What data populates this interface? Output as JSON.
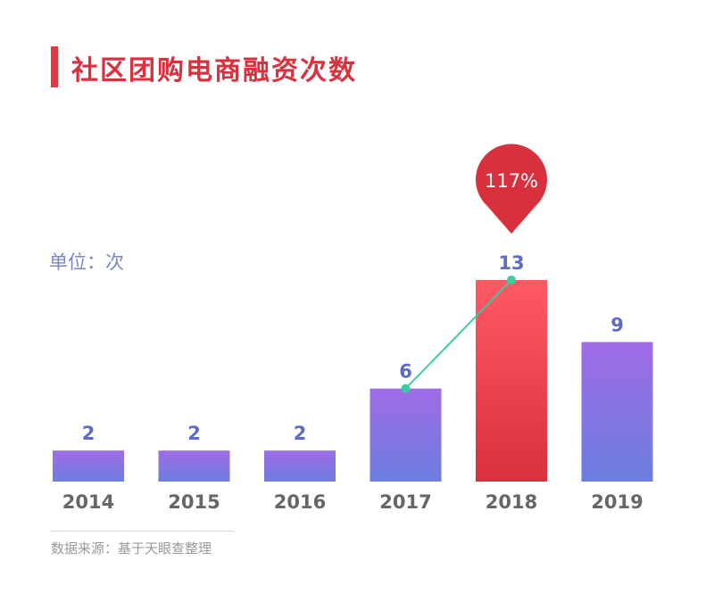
{
  "title": "社区团购电商融资次数",
  "unit_label": "单位：次",
  "source": "数据来源：基于天眼查整理",
  "colors": {
    "accent": "#e23744",
    "bar_gradient_top": "#a06be6",
    "bar_gradient_bottom": "#6b7ee0",
    "highlight_top": "#ff5a63",
    "highlight_bottom": "#d8303c",
    "value_label": "#5b6bc6",
    "axis_label": "#666666",
    "growth_line": "#3ec9a3"
  },
  "chart_data": {
    "type": "bar",
    "categories": [
      "2014",
      "2015",
      "2016",
      "2017",
      "2018",
      "2019"
    ],
    "values": [
      2,
      2,
      2,
      6,
      13,
      9
    ],
    "value_labels": [
      "2",
      "2",
      "2",
      "6",
      "13",
      "9"
    ],
    "ylabel": "单位：次",
    "ylim": [
      0,
      13
    ],
    "highlight_index": 4,
    "annotation": {
      "text": "117%",
      "from_index": 3,
      "to_index": 4
    },
    "grid": false,
    "legend": "none"
  }
}
